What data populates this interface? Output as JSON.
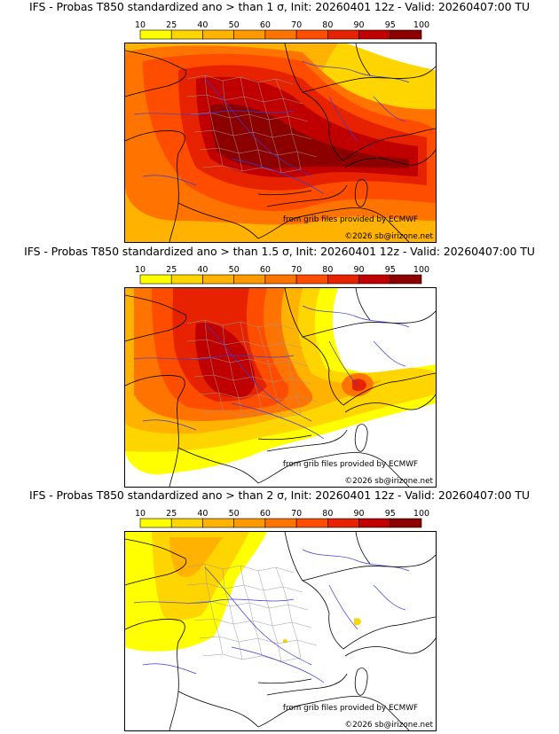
{
  "scale": {
    "labels": [
      "10",
      "25",
      "40",
      "50",
      "60",
      "70",
      "80",
      "90",
      "95",
      "100"
    ],
    "colors": [
      "#ffff00",
      "#ffd500",
      "#ffb300",
      "#ff9900",
      "#ff7300",
      "#ff4d00",
      "#e62200",
      "#c00000",
      "#8c0000"
    ]
  },
  "panels": [
    {
      "title": "IFS - Probas T850  standardized ano > than 1 σ, Init: 20260401 12z - Valid: 20260407:00 TU",
      "credit_provided": "from grib files provided by ECMWF",
      "credit_copyright": "©2026 sb@irizone.net",
      "sigma": "1"
    },
    {
      "title": "IFS - Probas T850  standardized ano > than 1.5 σ, Init: 20260401 12z - Valid: 20260407:00 TU",
      "credit_provided": "from grib files provided by ECMWF",
      "credit_copyright": "©2026 sb@irizone.net",
      "sigma": "1.5"
    },
    {
      "title": "IFS - Probas T850  standardized ano > than 2 σ, Init: 20260401 12z - Valid: 20260407:00 TU",
      "credit_provided": "from grib files provided by ECMWF",
      "credit_copyright": "©2026 sb@irizone.net",
      "sigma": "2"
    }
  ]
}
